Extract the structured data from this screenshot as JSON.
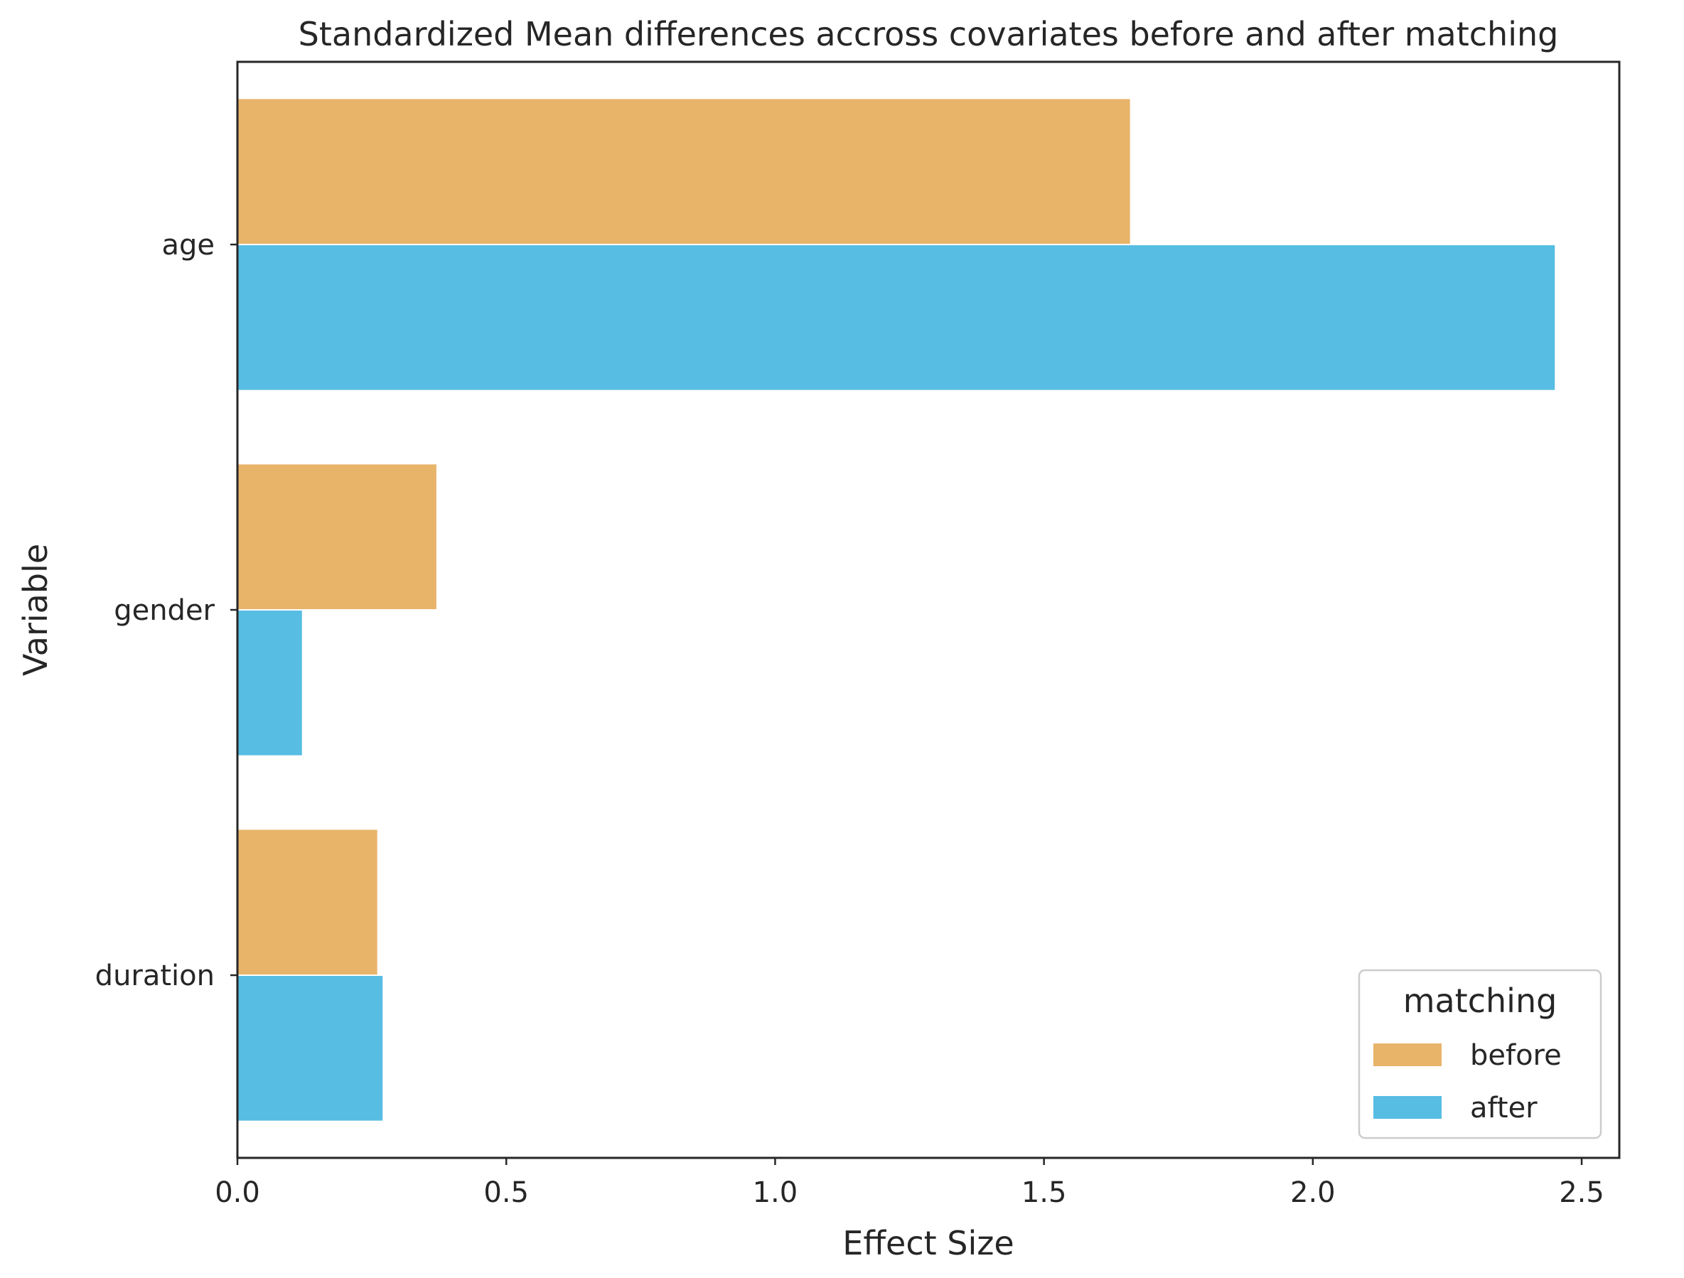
{
  "chart_data": {
    "type": "bar",
    "orientation": "horizontal",
    "title": "Standardized Mean differences accross covariates before and after matching",
    "xlabel": "Effect Size",
    "ylabel": "Variable",
    "categories": [
      "age",
      "gender",
      "duration"
    ],
    "series": [
      {
        "name": "before",
        "color": "#E8B46A",
        "values": [
          1.66,
          0.37,
          0.26
        ]
      },
      {
        "name": "after",
        "color": "#57BDE3",
        "values": [
          2.45,
          0.12,
          0.27
        ]
      }
    ],
    "xlim": [
      0,
      2.57
    ],
    "xticks": [
      0.0,
      0.5,
      1.0,
      1.5,
      2.0,
      2.5
    ],
    "xtick_labels": [
      "0.0",
      "0.5",
      "1.0",
      "1.5",
      "2.0",
      "2.5"
    ],
    "grid": false,
    "legend": {
      "title": "matching",
      "placement": "bottom-right"
    }
  }
}
